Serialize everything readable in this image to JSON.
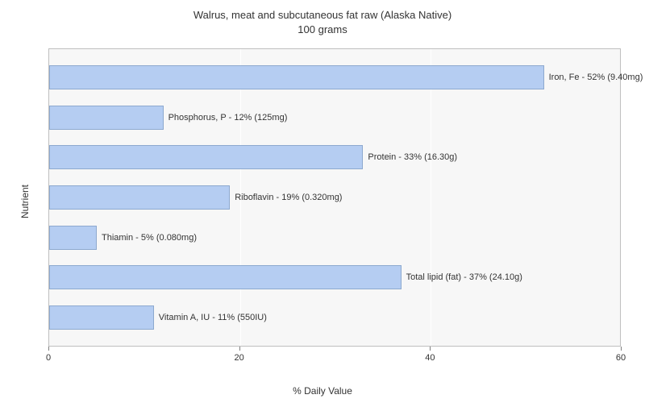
{
  "chart": {
    "type": "bar-horizontal",
    "title_line1": "Walrus, meat and subcutaneous fat raw (Alaska Native)",
    "title_line2": "100 grams",
    "title_fontsize": 13,
    "title_color": "#333333",
    "plot_background": "#f7f7f7",
    "chart_background": "#ffffff",
    "plot_border_color": "#bfbfbf",
    "gridline_color": "#ffffff",
    "bar_fill": "#b5cdf2",
    "bar_border": "#8da9cf",
    "label_fontsize": 11,
    "label_color": "#333333",
    "axis_title_fontsize": 12,
    "x_axis_title": "% Daily Value",
    "y_axis_title": "Nutrient",
    "x_min": 0,
    "x_max": 60,
    "x_ticks": [
      0,
      20,
      40,
      60
    ],
    "bars": [
      {
        "name": "Iron, Fe",
        "value": 52,
        "label": "Iron, Fe - 52% (9.40mg)"
      },
      {
        "name": "Phosphorus, P",
        "value": 12,
        "label": "Phosphorus, P - 12% (125mg)"
      },
      {
        "name": "Protein",
        "value": 33,
        "label": "Protein - 33% (16.30g)"
      },
      {
        "name": "Riboflavin",
        "value": 19,
        "label": "Riboflavin - 19% (0.320mg)"
      },
      {
        "name": "Thiamin",
        "value": 5,
        "label": "Thiamin - 5% (0.080mg)"
      },
      {
        "name": "Total lipid (fat)",
        "value": 37,
        "label": "Total lipid (fat) - 37% (24.10g)"
      },
      {
        "name": "Vitamin A, IU",
        "value": 11,
        "label": "Vitamin A, IU - 11% (550IU)"
      }
    ]
  }
}
